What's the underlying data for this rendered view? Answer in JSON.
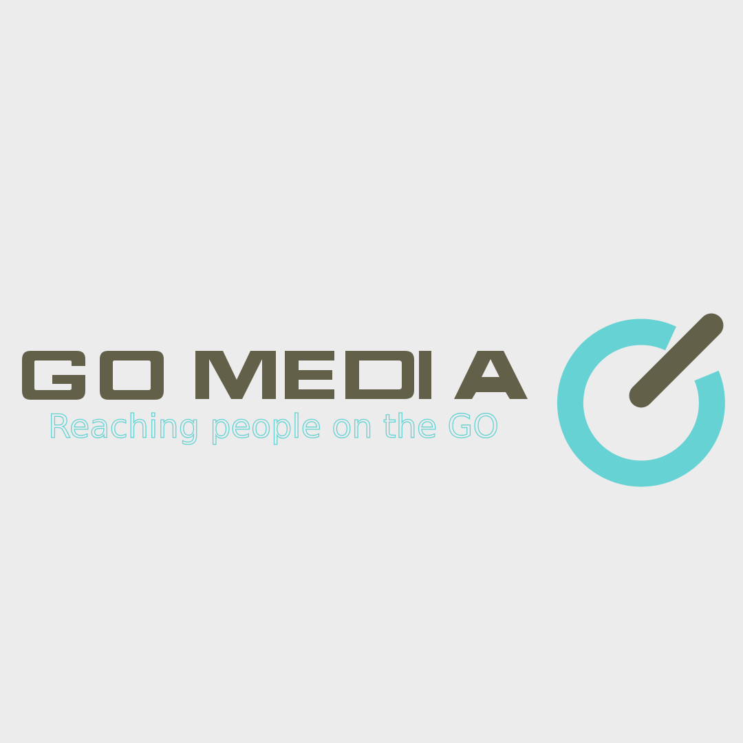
{
  "logo": {
    "wordmark": "GO MEDIA",
    "tagline": "Reaching people on the GO",
    "icon": "power-button-icon"
  },
  "colors": {
    "background": "#ececec",
    "wordmark": "#626049",
    "accent": "#66d2d4"
  }
}
